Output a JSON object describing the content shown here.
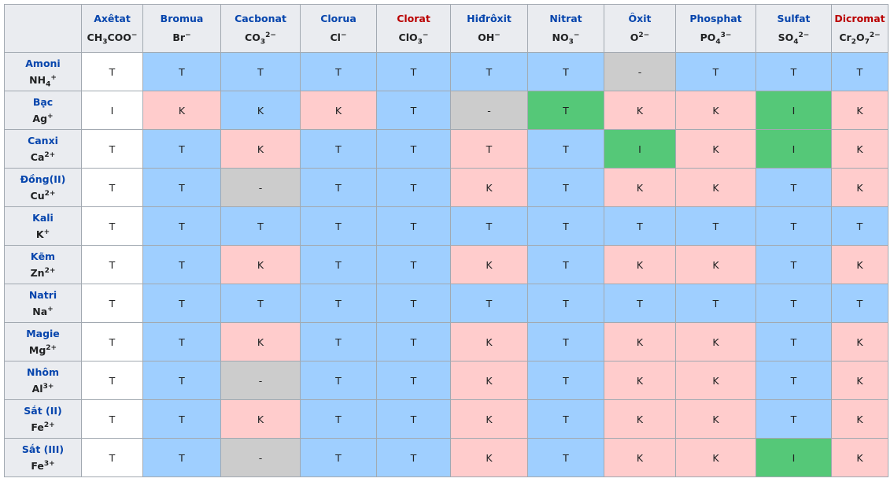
{
  "table": {
    "columns": [
      {
        "name": "Axêtat",
        "name_color": "#0645ad",
        "formula": [
          {
            "text": "CH"
          },
          {
            "sub": "3"
          },
          {
            "text": "COO"
          },
          {
            "sup": "−"
          }
        ]
      },
      {
        "name": "Bromua",
        "name_color": "#0645ad",
        "formula": [
          {
            "text": "Br"
          },
          {
            "sup": "−"
          }
        ]
      },
      {
        "name": "Cacbonat",
        "name_color": "#0645ad",
        "formula": [
          {
            "text": "CO"
          },
          {
            "sub": "3"
          },
          {
            "sup": "2−"
          }
        ]
      },
      {
        "name": "Clorua",
        "name_color": "#0645ad",
        "formula": [
          {
            "text": "Cl"
          },
          {
            "sup": "−"
          }
        ]
      },
      {
        "name": "Clorat",
        "name_color": "#ba0000",
        "formula": [
          {
            "text": "ClO"
          },
          {
            "sub": "3"
          },
          {
            "sup": "−"
          }
        ]
      },
      {
        "name": "Hiđrôxit",
        "name_color": "#0645ad",
        "formula": [
          {
            "text": "OH"
          },
          {
            "sup": "−"
          }
        ]
      },
      {
        "name": "Nitrat",
        "name_color": "#0645ad",
        "formula": [
          {
            "text": "NO"
          },
          {
            "sub": "3"
          },
          {
            "sup": "−"
          }
        ]
      },
      {
        "name": "Ôxit",
        "name_color": "#0645ad",
        "formula": [
          {
            "text": "O"
          },
          {
            "sup": "2−"
          }
        ]
      },
      {
        "name": "Phosphat",
        "name_color": "#0645ad",
        "formula": [
          {
            "text": "PO"
          },
          {
            "sub": "4"
          },
          {
            "sup": "3−"
          }
        ]
      },
      {
        "name": "Sulfat",
        "name_color": "#0645ad",
        "formula": [
          {
            "text": "SO"
          },
          {
            "sub": "4"
          },
          {
            "sup": "2−"
          }
        ]
      },
      {
        "name": "Dicromat",
        "name_color": "#ba0000",
        "formula": [
          {
            "text": "Cr"
          },
          {
            "sub": "2"
          },
          {
            "text": "O"
          },
          {
            "sub": "7"
          },
          {
            "sup": "2−"
          }
        ]
      }
    ],
    "rows": [
      {
        "name": "Amoni",
        "formula": [
          {
            "text": "NH"
          },
          {
            "sub": "4"
          },
          {
            "sup": "+"
          }
        ],
        "cells": [
          {
            "text": "T",
            "color": "#ffffff"
          },
          {
            "text": "T",
            "color": "#9fcfff"
          },
          {
            "text": "T",
            "color": "#9fcfff"
          },
          {
            "text": "T",
            "color": "#9fcfff"
          },
          {
            "text": "T",
            "color": "#9fcfff"
          },
          {
            "text": "T",
            "color": "#9fcfff"
          },
          {
            "text": "T",
            "color": "#9fcfff"
          },
          {
            "text": "-",
            "color": "#cccccc"
          },
          {
            "text": "T",
            "color": "#9fcfff"
          },
          {
            "text": "T",
            "color": "#9fcfff"
          },
          {
            "text": "T",
            "color": "#9fcfff"
          }
        ]
      },
      {
        "name": "Bạc",
        "formula": [
          {
            "text": "Ag"
          },
          {
            "sup": "+"
          }
        ],
        "cells": [
          {
            "text": "I",
            "color": "#ffffff"
          },
          {
            "text": "K",
            "color": "#ffcccc"
          },
          {
            "text": "K",
            "color": "#9fcfff"
          },
          {
            "text": "K",
            "color": "#ffcccc"
          },
          {
            "text": "T",
            "color": "#9fcfff"
          },
          {
            "text": "-",
            "color": "#cccccc"
          },
          {
            "text": "T",
            "color": "#55c878"
          },
          {
            "text": "K",
            "color": "#ffcccc"
          },
          {
            "text": "K",
            "color": "#ffcccc"
          },
          {
            "text": "I",
            "color": "#55c878"
          },
          {
            "text": "K",
            "color": "#ffcccc"
          }
        ]
      },
      {
        "name": "Canxi",
        "formula": [
          {
            "text": "Ca"
          },
          {
            "sup": "2+"
          }
        ],
        "cells": [
          {
            "text": "T",
            "color": "#ffffff"
          },
          {
            "text": "T",
            "color": "#9fcfff"
          },
          {
            "text": "K",
            "color": "#ffcccc"
          },
          {
            "text": "T",
            "color": "#9fcfff"
          },
          {
            "text": "T",
            "color": "#9fcfff"
          },
          {
            "text": "T",
            "color": "#ffcccc"
          },
          {
            "text": "T",
            "color": "#9fcfff"
          },
          {
            "text": "I",
            "color": "#55c878"
          },
          {
            "text": "K",
            "color": "#ffcccc"
          },
          {
            "text": "I",
            "color": "#55c878"
          },
          {
            "text": "K",
            "color": "#ffcccc"
          }
        ]
      },
      {
        "name": "Đồng(II)",
        "formula": [
          {
            "text": "Cu"
          },
          {
            "sup": "2+"
          }
        ],
        "cells": [
          {
            "text": "T",
            "color": "#ffffff"
          },
          {
            "text": "T",
            "color": "#9fcfff"
          },
          {
            "text": "-",
            "color": "#cccccc"
          },
          {
            "text": "T",
            "color": "#9fcfff"
          },
          {
            "text": "T",
            "color": "#9fcfff"
          },
          {
            "text": "K",
            "color": "#ffcccc"
          },
          {
            "text": "T",
            "color": "#9fcfff"
          },
          {
            "text": "K",
            "color": "#ffcccc"
          },
          {
            "text": "K",
            "color": "#ffcccc"
          },
          {
            "text": "T",
            "color": "#9fcfff"
          },
          {
            "text": "K",
            "color": "#ffcccc"
          }
        ]
      },
      {
        "name": "Kali",
        "formula": [
          {
            "text": "K"
          },
          {
            "sup": "+"
          }
        ],
        "cells": [
          {
            "text": "T",
            "color": "#ffffff"
          },
          {
            "text": "T",
            "color": "#9fcfff"
          },
          {
            "text": "T",
            "color": "#9fcfff"
          },
          {
            "text": "T",
            "color": "#9fcfff"
          },
          {
            "text": "T",
            "color": "#9fcfff"
          },
          {
            "text": "T",
            "color": "#9fcfff"
          },
          {
            "text": "T",
            "color": "#9fcfff"
          },
          {
            "text": "T",
            "color": "#9fcfff"
          },
          {
            "text": "T",
            "color": "#9fcfff"
          },
          {
            "text": "T",
            "color": "#9fcfff"
          },
          {
            "text": "T",
            "color": "#9fcfff"
          }
        ]
      },
      {
        "name": "Kẽm",
        "formula": [
          {
            "text": "Zn"
          },
          {
            "sup": "2+"
          }
        ],
        "cells": [
          {
            "text": "T",
            "color": "#ffffff"
          },
          {
            "text": "T",
            "color": "#9fcfff"
          },
          {
            "text": "K",
            "color": "#ffcccc"
          },
          {
            "text": "T",
            "color": "#9fcfff"
          },
          {
            "text": "T",
            "color": "#9fcfff"
          },
          {
            "text": "K",
            "color": "#ffcccc"
          },
          {
            "text": "T",
            "color": "#9fcfff"
          },
          {
            "text": "K",
            "color": "#ffcccc"
          },
          {
            "text": "K",
            "color": "#ffcccc"
          },
          {
            "text": "T",
            "color": "#9fcfff"
          },
          {
            "text": "K",
            "color": "#ffcccc"
          }
        ]
      },
      {
        "name": "Natri",
        "formula": [
          {
            "text": "Na"
          },
          {
            "sup": "+"
          }
        ],
        "cells": [
          {
            "text": "T",
            "color": "#ffffff"
          },
          {
            "text": "T",
            "color": "#9fcfff"
          },
          {
            "text": "T",
            "color": "#9fcfff"
          },
          {
            "text": "T",
            "color": "#9fcfff"
          },
          {
            "text": "T",
            "color": "#9fcfff"
          },
          {
            "text": "T",
            "color": "#9fcfff"
          },
          {
            "text": "T",
            "color": "#9fcfff"
          },
          {
            "text": "T",
            "color": "#9fcfff"
          },
          {
            "text": "T",
            "color": "#9fcfff"
          },
          {
            "text": "T",
            "color": "#9fcfff"
          },
          {
            "text": "T",
            "color": "#9fcfff"
          }
        ]
      },
      {
        "name": "Magie",
        "formula": [
          {
            "text": "Mg"
          },
          {
            "sup": "2+"
          }
        ],
        "cells": [
          {
            "text": "T",
            "color": "#ffffff"
          },
          {
            "text": "T",
            "color": "#9fcfff"
          },
          {
            "text": "K",
            "color": "#ffcccc"
          },
          {
            "text": "T",
            "color": "#9fcfff"
          },
          {
            "text": "T",
            "color": "#9fcfff"
          },
          {
            "text": "K",
            "color": "#ffcccc"
          },
          {
            "text": "T",
            "color": "#9fcfff"
          },
          {
            "text": "K",
            "color": "#ffcccc"
          },
          {
            "text": "K",
            "color": "#ffcccc"
          },
          {
            "text": "T",
            "color": "#9fcfff"
          },
          {
            "text": "K",
            "color": "#ffcccc"
          }
        ]
      },
      {
        "name": "Nhôm",
        "formula": [
          {
            "text": "Al"
          },
          {
            "sup": "3+"
          }
        ],
        "cells": [
          {
            "text": "T",
            "color": "#ffffff"
          },
          {
            "text": "T",
            "color": "#9fcfff"
          },
          {
            "text": "-",
            "color": "#cccccc"
          },
          {
            "text": "T",
            "color": "#9fcfff"
          },
          {
            "text": "T",
            "color": "#9fcfff"
          },
          {
            "text": "K",
            "color": "#ffcccc"
          },
          {
            "text": "T",
            "color": "#9fcfff"
          },
          {
            "text": "K",
            "color": "#ffcccc"
          },
          {
            "text": "K",
            "color": "#ffcccc"
          },
          {
            "text": "T",
            "color": "#9fcfff"
          },
          {
            "text": "K",
            "color": "#ffcccc"
          }
        ]
      },
      {
        "name": "Sắt (II)",
        "formula": [
          {
            "text": "Fe"
          },
          {
            "sup": "2+"
          }
        ],
        "cells": [
          {
            "text": "T",
            "color": "#ffffff"
          },
          {
            "text": "T",
            "color": "#9fcfff"
          },
          {
            "text": "K",
            "color": "#ffcccc"
          },
          {
            "text": "T",
            "color": "#9fcfff"
          },
          {
            "text": "T",
            "color": "#9fcfff"
          },
          {
            "text": "K",
            "color": "#ffcccc"
          },
          {
            "text": "T",
            "color": "#9fcfff"
          },
          {
            "text": "K",
            "color": "#ffcccc"
          },
          {
            "text": "K",
            "color": "#ffcccc"
          },
          {
            "text": "T",
            "color": "#9fcfff"
          },
          {
            "text": "K",
            "color": "#ffcccc"
          }
        ]
      },
      {
        "name": "Sắt (III)",
        "formula": [
          {
            "text": "Fe"
          },
          {
            "sup": "3+"
          }
        ],
        "cells": [
          {
            "text": "T",
            "color": "#ffffff"
          },
          {
            "text": "T",
            "color": "#9fcfff"
          },
          {
            "text": "-",
            "color": "#cccccc"
          },
          {
            "text": "T",
            "color": "#9fcfff"
          },
          {
            "text": "T",
            "color": "#9fcfff"
          },
          {
            "text": "K",
            "color": "#ffcccc"
          },
          {
            "text": "T",
            "color": "#9fcfff"
          },
          {
            "text": "K",
            "color": "#ffcccc"
          },
          {
            "text": "K",
            "color": "#ffcccc"
          },
          {
            "text": "I",
            "color": "#55c878"
          },
          {
            "text": "K",
            "color": "#ffcccc"
          }
        ]
      }
    ]
  }
}
